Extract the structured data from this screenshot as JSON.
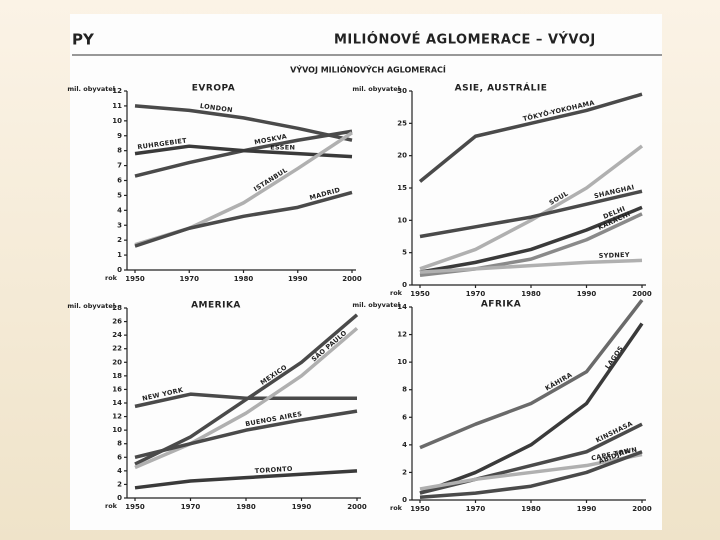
{
  "header": {
    "left": "PY",
    "title": "MILIÓNOVÉ AGLOMERACE – VÝVOJ",
    "subtitle": "VÝVOJ MILIÓNOVÝCH AGLOMERACÍ"
  },
  "chart_data": [
    {
      "type": "line",
      "title": "EVROPA",
      "ylabel": "mil. obyvatel",
      "xlabel": "rok",
      "categories": [
        "1950",
        "1970",
        "1980",
        "1990",
        "2000"
      ],
      "ylim": [
        0,
        12
      ],
      "yticks": [
        0,
        1,
        2,
        3,
        4,
        5,
        6,
        7,
        8,
        9,
        10,
        11,
        12
      ],
      "annotations": [
        "ESSEN"
      ],
      "series": [
        {
          "name": "LONDON",
          "color": "#4a4a4a",
          "values": [
            11,
            10.7,
            10.2,
            9.5,
            8.7
          ]
        },
        {
          "name": "MOSKVA",
          "color": "#4a4a4a",
          "values": [
            6.3,
            7.2,
            8,
            8.7,
            9.3
          ]
        },
        {
          "name": "RUHRGEBIET",
          "color": "#3a3a3a",
          "values": [
            7.8,
            8.3,
            8,
            7.8,
            7.6
          ]
        },
        {
          "name": "ISTANBUL",
          "color": "#b0b0b0",
          "values": [
            1.7,
            2.8,
            4.5,
            6.8,
            9.2
          ]
        },
        {
          "name": "MADRID",
          "color": "#4a4a4a",
          "values": [
            1.6,
            2.8,
            3.6,
            4.2,
            5.2
          ]
        }
      ]
    },
    {
      "type": "line",
      "title": "ASIE, AUSTRÁLIE",
      "ylabel": "mil. obyvatel",
      "xlabel": "rok",
      "categories": [
        "1950",
        "1970",
        "1980",
        "1990",
        "2000"
      ],
      "ylim": [
        0,
        30
      ],
      "yticks": [
        0,
        5,
        10,
        15,
        20,
        25,
        30
      ],
      "series": [
        {
          "name": "TŌKYŌ-YOKOHAMA",
          "color": "#4a4a4a",
          "values": [
            16,
            23,
            25,
            27,
            29.5
          ]
        },
        {
          "name": "SOUL",
          "color": "#b0b0b0",
          "values": [
            2.5,
            5.5,
            10,
            15,
            21.5
          ]
        },
        {
          "name": "SHANGHAI",
          "color": "#4a4a4a",
          "values": [
            7.5,
            9,
            10.5,
            12.5,
            14.5
          ]
        },
        {
          "name": "DELHI",
          "color": "#3a3a3a",
          "values": [
            2,
            3.5,
            5.5,
            8.5,
            12
          ]
        },
        {
          "name": "KARÁCHI",
          "color": "#8a8a8a",
          "values": [
            1.5,
            2.5,
            4,
            7,
            11
          ]
        },
        {
          "name": "SYDNEY",
          "color": "#b0b0b0",
          "values": [
            2,
            2.5,
            3,
            3.5,
            3.8
          ]
        }
      ]
    },
    {
      "type": "line",
      "title": "AMERIKA",
      "ylabel": "mil. obyvatel",
      "xlabel": "rok",
      "categories": [
        "1950",
        "1970",
        "1980",
        "1990",
        "2000"
      ],
      "ylim": [
        0,
        28
      ],
      "yticks": [
        0,
        2,
        4,
        6,
        8,
        10,
        12,
        14,
        16,
        18,
        20,
        22,
        24,
        26,
        28
      ],
      "series": [
        {
          "name": "NEW YORK",
          "color": "#4a4a4a",
          "values": [
            13.5,
            15.3,
            14.7,
            14.7,
            14.7
          ]
        },
        {
          "name": "MEXICO",
          "color": "#4a4a4a",
          "values": [
            5,
            9,
            14.5,
            20,
            27
          ]
        },
        {
          "name": "SÃO PAULO",
          "color": "#b0b0b0",
          "values": [
            4.5,
            8,
            12.5,
            18,
            25
          ]
        },
        {
          "name": "BUENOS AIRES",
          "color": "#4a4a4a",
          "values": [
            6,
            8,
            10,
            11.5,
            12.8
          ]
        },
        {
          "name": "TORONTO",
          "color": "#3a3a3a",
          "values": [
            1.5,
            2.5,
            3,
            3.5,
            4
          ]
        }
      ]
    },
    {
      "type": "line",
      "title": "AFRIKA",
      "ylabel": "mil. obyvatel",
      "xlabel": "rok",
      "categories": [
        "1950",
        "1970",
        "1980",
        "1990",
        "2000"
      ],
      "ylim": [
        0,
        14
      ],
      "yticks": [
        0,
        2,
        4,
        6,
        8,
        10,
        12,
        14
      ],
      "series": [
        {
          "name": "KÁHIRA",
          "color": "#6a6a6a",
          "values": [
            3.8,
            5.5,
            7,
            9.3,
            14.5
          ]
        },
        {
          "name": "LAGOS",
          "color": "#3a3a3a",
          "values": [
            0.5,
            2,
            4,
            7,
            12.8
          ]
        },
        {
          "name": "KINSHASA",
          "color": "#4a4a4a",
          "values": [
            0.5,
            1.5,
            2.5,
            3.5,
            5.5
          ]
        },
        {
          "name": "CAPE TOWN",
          "color": "#b0b0b0",
          "values": [
            0.8,
            1.5,
            2,
            2.5,
            3.3
          ]
        },
        {
          "name": "ABIDJAN",
          "color": "#4a4a4a",
          "values": [
            0.2,
            0.5,
            1,
            2,
            3.5
          ]
        }
      ]
    }
  ]
}
